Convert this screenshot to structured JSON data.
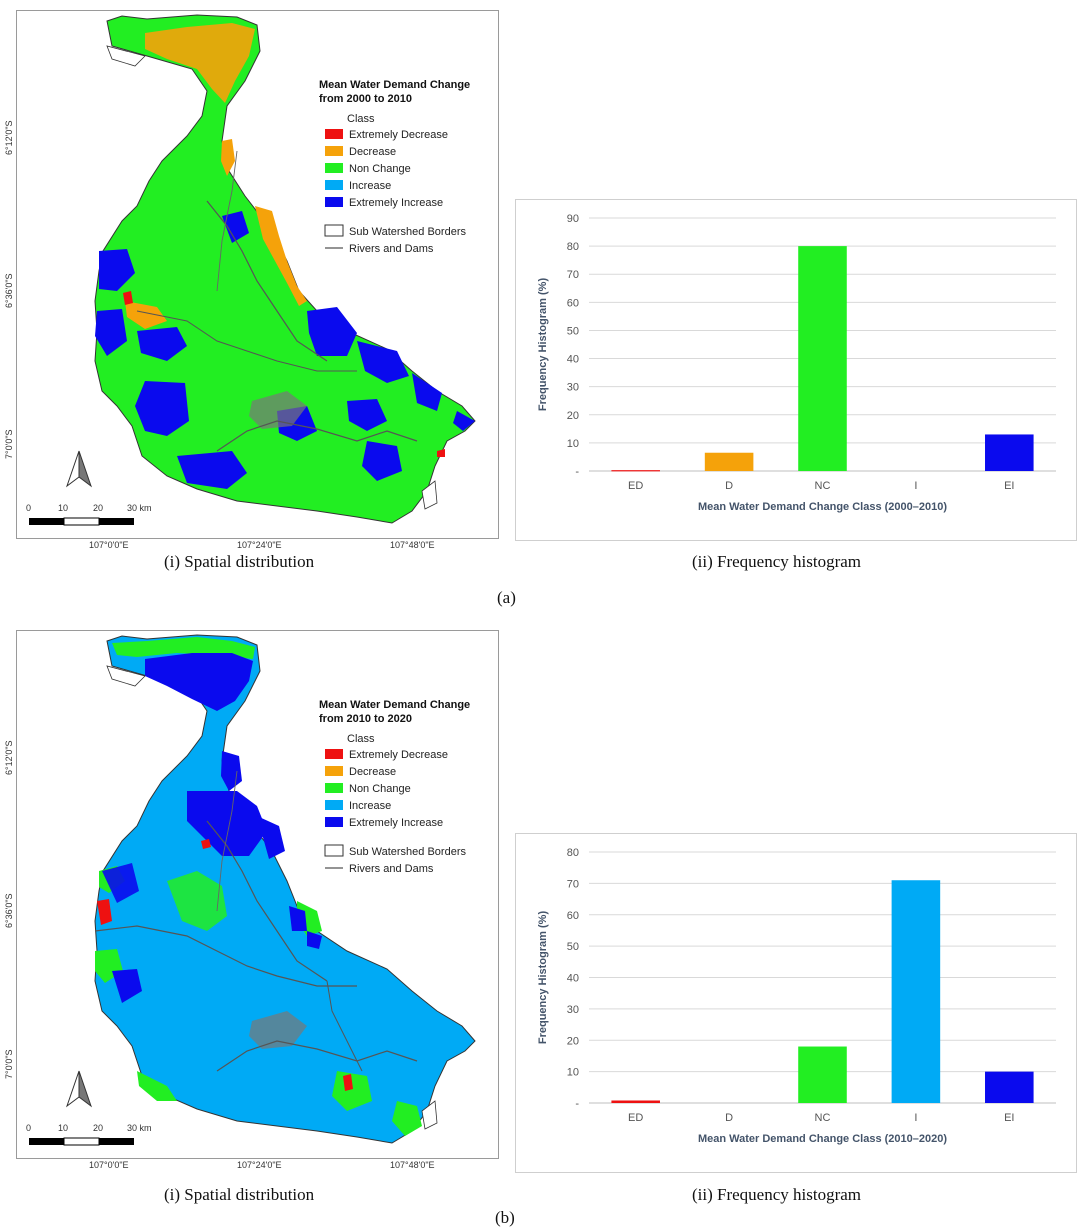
{
  "colors": {
    "extremely_decrease": "#ee1111",
    "decrease": "#f5a20a",
    "non_change": "#22ee22",
    "increase": "#00aaf5",
    "extremely_increase": "#0a0aee",
    "grid": "#d9d9d9"
  },
  "map_common": {
    "legend_class_heading": "Class",
    "legend_items": [
      "Extremely Decrease",
      "Decrease",
      "Non Change",
      "Increase",
      "Extremely Increase"
    ],
    "legend_borders": "Sub Watershed Borders",
    "legend_rivers": "Rivers and Dams",
    "lat_labels": [
      "6°12'0\"S",
      "6°36'0\"S",
      "7°0'0\"S"
    ],
    "lon_labels": [
      "107°0'0\"E",
      "107°24'0\"E",
      "107°48'0\"E"
    ],
    "scale_labels": [
      "0",
      "10",
      "20",
      "30 km"
    ],
    "north_icon": "north-arrow-icon"
  },
  "panel_a": {
    "label": "(a)",
    "map": {
      "title_line1": "Mean Water Demand Change",
      "title_line2": "from 2000 to 2010",
      "caption": "(i) Spatial distribution"
    },
    "histogram": {
      "caption": "(ii) Frequency histogram"
    }
  },
  "panel_b": {
    "label": "(b)",
    "map": {
      "title_line1": "Mean Water Demand Change",
      "title_line2": "from 2010 to 2020",
      "caption": "(i) Spatial distribution"
    },
    "histogram": {
      "caption": "(ii) Frequency histogram"
    }
  },
  "chart_data": [
    {
      "type": "bar",
      "title": "",
      "categories": [
        "ED",
        "D",
        "NC",
        "I",
        "EI"
      ],
      "values": [
        0.3,
        6.5,
        80,
        0,
        13
      ],
      "xlabel": "Mean Water Demand Change Class (2000–2010)",
      "ylabel": "Frequency Histogram (%)",
      "ylim": [
        0,
        90
      ],
      "yticks": [
        "-",
        "10",
        "20",
        "30",
        "40",
        "50",
        "60",
        "70",
        "80",
        "90"
      ],
      "grid": true
    },
    {
      "type": "bar",
      "title": "",
      "categories": [
        "ED",
        "D",
        "NC",
        "I",
        "EI"
      ],
      "values": [
        0.8,
        0,
        18,
        71,
        10
      ],
      "xlabel": "Mean Water Demand Change Class (2010–2020)",
      "ylabel": "Frequency Histogram (%)",
      "ylim": [
        0,
        80
      ],
      "yticks": [
        "-",
        "10",
        "20",
        "30",
        "40",
        "50",
        "60",
        "70",
        "80"
      ],
      "grid": true
    }
  ]
}
